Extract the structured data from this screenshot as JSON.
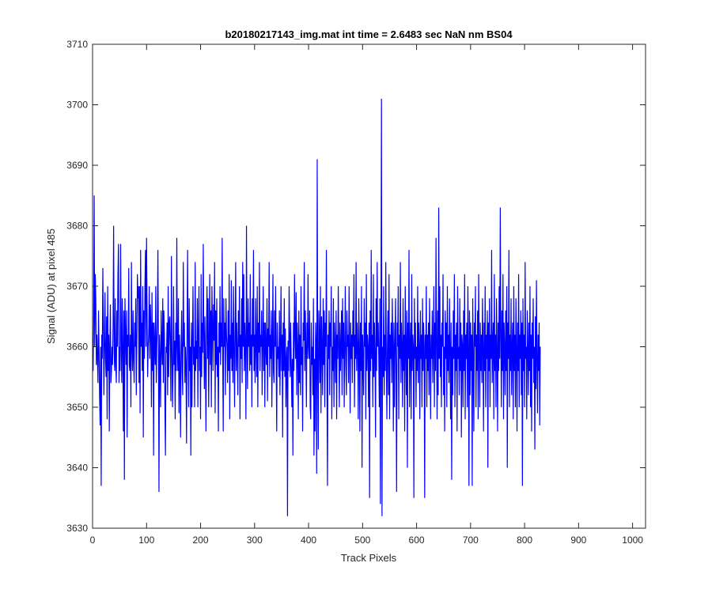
{
  "chart_data": {
    "type": "line",
    "title": "b20180217143_img.mat int time = 2.6483 sec  NaN nm BS04",
    "xlabel": "Track Pixels",
    "ylabel": "Signal (ADU) at pixel 485",
    "xlim": [
      0,
      1024
    ],
    "ylim": [
      3630,
      3710
    ],
    "xticks": [
      0,
      100,
      200,
      300,
      400,
      500,
      600,
      700,
      800,
      900,
      1000
    ],
    "yticks": [
      3630,
      3640,
      3650,
      3660,
      3670,
      3680,
      3690,
      3700,
      3710
    ],
    "grid": false,
    "line_color": "#0000ff",
    "series": [
      {
        "x_start": 1,
        "x_step": 1,
        "values": [
          3656,
          3664,
          3685,
          3660,
          3672,
          3668,
          3657,
          3662,
          3658,
          3654,
          3666,
          3660,
          3652,
          3647,
          3660,
          3637,
          3662,
          3658,
          3673,
          3664,
          3652,
          3660,
          3669,
          3658,
          3655,
          3665,
          3648,
          3670,
          3656,
          3662,
          3646,
          3660,
          3667,
          3654,
          3656,
          3660,
          3657,
          3664,
          3680,
          3659,
          3656,
          3668,
          3657,
          3654,
          3666,
          3660,
          3672,
          3677,
          3654,
          3660,
          3656,
          3677,
          3661,
          3654,
          3668,
          3660,
          3646,
          3666,
          3638,
          3668,
          3662,
          3657,
          3666,
          3645,
          3662,
          3660,
          3673,
          3657,
          3656,
          3662,
          3650,
          3674,
          3660,
          3656,
          3666,
          3658,
          3654,
          3664,
          3660,
          3668,
          3652,
          3660,
          3672,
          3668,
          3670,
          3654,
          3670,
          3649,
          3676,
          3660,
          3664,
          3656,
          3670,
          3645,
          3666,
          3658,
          3670,
          3676,
          3660,
          3678,
          3666,
          3655,
          3660,
          3662,
          3670,
          3658,
          3667,
          3663,
          3650,
          3669,
          3656,
          3664,
          3642,
          3664,
          3660,
          3657,
          3670,
          3654,
          3660,
          3664,
          3676,
          3660,
          3636,
          3662,
          3658,
          3650,
          3666,
          3660,
          3657,
          3668,
          3654,
          3666,
          3662,
          3650,
          3642,
          3660,
          3659,
          3664,
          3652,
          3670,
          3655,
          3664,
          3665,
          3660,
          3651,
          3675,
          3660,
          3650,
          3656,
          3670,
          3657,
          3661,
          3648,
          3664,
          3656,
          3678,
          3660,
          3656,
          3668,
          3649,
          3662,
          3657,
          3645,
          3660,
          3666,
          3656,
          3652,
          3674,
          3660,
          3664,
          3654,
          3660,
          3657,
          3644,
          3663,
          3676,
          3660,
          3650,
          3668,
          3656,
          3660,
          3642,
          3664,
          3650,
          3661,
          3670,
          3657,
          3660,
          3650,
          3674,
          3656,
          3661,
          3658,
          3668,
          3650,
          3662,
          3670,
          3656,
          3660,
          3648,
          3672,
          3655,
          3664,
          3659,
          3677,
          3662,
          3653,
          3665,
          3657,
          3646,
          3663,
          3670,
          3658,
          3668,
          3650,
          3661,
          3672,
          3657,
          3666,
          3650,
          3670,
          3664,
          3656,
          3667,
          3661,
          3674,
          3649,
          3666,
          3657,
          3668,
          3655,
          3660,
          3646,
          3664,
          3659,
          3670,
          3657,
          3664,
          3660,
          3678,
          3658,
          3646,
          3668,
          3660,
          3664,
          3652,
          3668,
          3662,
          3660,
          3654,
          3666,
          3656,
          3672,
          3648,
          3662,
          3658,
          3671,
          3656,
          3664,
          3654,
          3670,
          3660,
          3650,
          3662,
          3674,
          3656,
          3664,
          3659,
          3652,
          3666,
          3660,
          3670,
          3648,
          3662,
          3658,
          3668,
          3654,
          3674,
          3660,
          3672,
          3656,
          3664,
          3660,
          3648,
          3680,
          3661,
          3653,
          3668,
          3660,
          3664,
          3656,
          3672,
          3657,
          3662,
          3650,
          3668,
          3660,
          3676,
          3656,
          3662,
          3654,
          3668,
          3660,
          3655,
          3670,
          3650,
          3664,
          3659,
          3674,
          3656,
          3662,
          3660,
          3666,
          3652,
          3660,
          3670,
          3656,
          3664,
          3650,
          3664,
          3660,
          3657,
          3668,
          3651,
          3663,
          3660,
          3674,
          3655,
          3662,
          3658,
          3666,
          3650,
          3660,
          3672,
          3656,
          3654,
          3666,
          3660,
          3670,
          3658,
          3646,
          3664,
          3658,
          3660,
          3655,
          3666,
          3652,
          3660,
          3670,
          3656,
          3662,
          3645,
          3664,
          3656,
          3668,
          3655,
          3663,
          3650,
          3658,
          3660,
          3632,
          3661,
          3656,
          3670,
          3662,
          3655,
          3664,
          3657,
          3650,
          3658,
          3642,
          3664,
          3656,
          3672,
          3662,
          3658,
          3669,
          3652,
          3664,
          3660,
          3648,
          3666,
          3654,
          3662,
          3652,
          3670,
          3657,
          3660,
          3646,
          3664,
          3661,
          3674,
          3656,
          3666,
          3660,
          3650,
          3664,
          3658,
          3672,
          3660,
          3658,
          3666,
          3650,
          3648,
          3664,
          3657,
          3660,
          3652,
          3668,
          3642,
          3658,
          3646,
          3664,
          3660,
          3639,
          3691,
          3656,
          3643,
          3666,
          3662,
          3654,
          3670,
          3649,
          3665,
          3660,
          3652,
          3668,
          3657,
          3666,
          3650,
          3664,
          3660,
          3676,
          3655,
          3637,
          3662,
          3658,
          3666,
          3652,
          3664,
          3660,
          3670,
          3648,
          3660,
          3656,
          3668,
          3650,
          3664,
          3660,
          3654,
          3666,
          3648,
          3662,
          3658,
          3670,
          3660,
          3650,
          3664,
          3656,
          3660,
          3666,
          3652,
          3668,
          3658,
          3664,
          3650,
          3660,
          3670,
          3657,
          3652,
          3666,
          3660,
          3662,
          3654,
          3670,
          3660,
          3649,
          3664,
          3658,
          3662,
          3654,
          3666,
          3660,
          3672,
          3650,
          3662,
          3658,
          3674,
          3656,
          3664,
          3660,
          3648,
          3668,
          3660,
          3646,
          3664,
          3656,
          3670,
          3640,
          3662,
          3658,
          3652,
          3668,
          3660,
          3664,
          3648,
          3672,
          3656,
          3662,
          3660,
          3650,
          3664,
          3635,
          3666,
          3656,
          3676,
          3658,
          3662,
          3650,
          3672,
          3655,
          3664,
          3658,
          3645,
          3668,
          3656,
          3674,
          3660,
          3664,
          3658,
          3650,
          3668,
          3634,
          3662,
          3701,
          3632,
          3660,
          3655,
          3670,
          3652,
          3662,
          3656,
          3674,
          3658,
          3648,
          3660,
          3666,
          3652,
          3672,
          3648,
          3662,
          3658,
          3664,
          3654,
          3668,
          3660,
          3646,
          3664,
          3650,
          3660,
          3668,
          3656,
          3636,
          3664,
          3660,
          3670,
          3648,
          3662,
          3658,
          3674,
          3654,
          3664,
          3660,
          3650,
          3668,
          3656,
          3662,
          3646,
          3670,
          3660,
          3652,
          3666,
          3640,
          3664,
          3658,
          3676,
          3650,
          3660,
          3664,
          3648,
          3672,
          3656,
          3662,
          3660,
          3635,
          3668,
          3658,
          3664,
          3650,
          3660,
          3656,
          3670,
          3654,
          3664,
          3660,
          3648,
          3666,
          3658,
          3662,
          3650,
          3668,
          3656,
          3664,
          3660,
          3635,
          3662,
          3658,
          3670,
          3650,
          3662,
          3656,
          3664,
          3652,
          3668,
          3660,
          3648,
          3662,
          3658,
          3666,
          3654,
          3660,
          3670,
          3650,
          3664,
          3656,
          3678,
          3660,
          3648,
          3666,
          3652,
          3683,
          3658,
          3670,
          3655,
          3662,
          3650,
          3664,
          3660,
          3672,
          3652,
          3660,
          3646,
          3666,
          3658,
          3664,
          3650,
          3670,
          3656,
          3662,
          3654,
          3668,
          3660,
          3648,
          3664,
          3638,
          3660,
          3652,
          3666,
          3658,
          3672,
          3650,
          3662,
          3656,
          3664,
          3646,
          3670,
          3658,
          3660,
          3652,
          3668,
          3656,
          3664,
          3645,
          3662,
          3660,
          3650,
          3666,
          3656,
          3672,
          3648,
          3662,
          3658,
          3664,
          3650,
          3670,
          3660,
          3637,
          3666,
          3652,
          3664,
          3656,
          3662,
          3637,
          3668,
          3658,
          3646,
          3664,
          3660,
          3670,
          3650,
          3662,
          3656,
          3666,
          3648,
          3672,
          3660,
          3650,
          3664,
          3656,
          3662,
          3654,
          3668,
          3660,
          3646,
          3664,
          3656,
          3670,
          3650,
          3662,
          3658,
          3666,
          3640,
          3664,
          3656,
          3668,
          3650,
          3662,
          3658,
          3676,
          3654,
          3660,
          3664,
          3648,
          3672,
          3656,
          3662,
          3650,
          3668,
          3660,
          3646,
          3664,
          3656,
          3670,
          3658,
          3683,
          3662,
          3650,
          3666,
          3656,
          3672,
          3648,
          3664,
          3660,
          3652,
          3666,
          3656,
          3670,
          3640,
          3664,
          3658,
          3676,
          3650,
          3662,
          3656,
          3668,
          3652,
          3660,
          3664,
          3648,
          3670,
          3656,
          3662,
          3650,
          3668,
          3660,
          3646,
          3664,
          3656,
          3672,
          3650,
          3662,
          3658,
          3666,
          3652,
          3664,
          3637,
          3668,
          3656,
          3662,
          3650,
          3674,
          3658,
          3660,
          3648,
          3666,
          3660,
          3652,
          3664,
          3656,
          3670,
          3650,
          3662,
          3646,
          3664,
          3658,
          3668,
          3654,
          3660,
          3643,
          3665,
          3653,
          3671,
          3658,
          3649,
          3662,
          3656,
          3664,
          3647,
          3660
        ]
      }
    ]
  }
}
